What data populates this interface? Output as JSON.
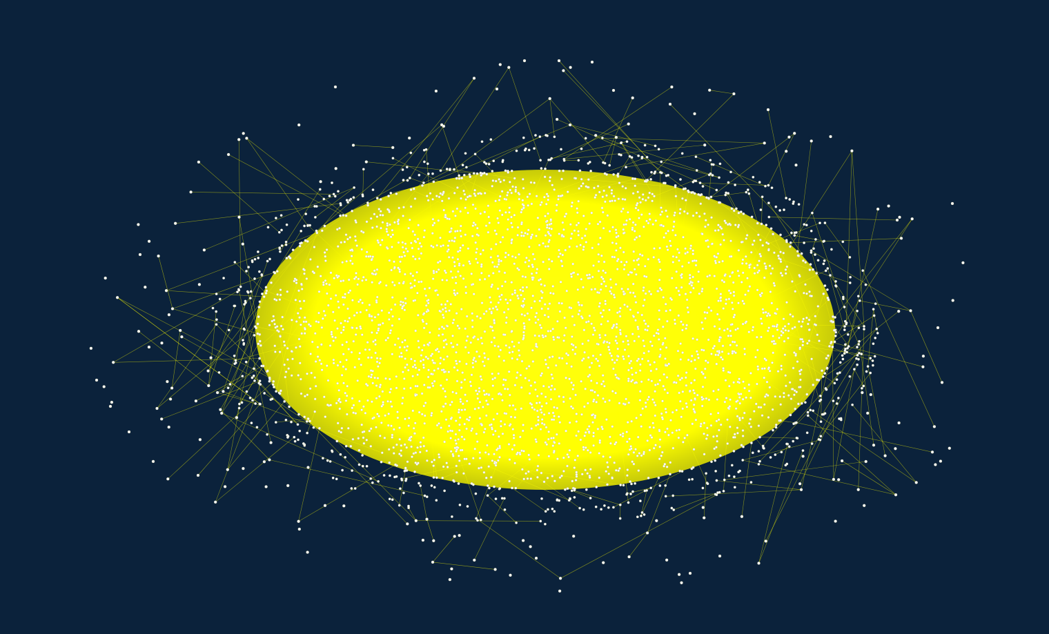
{
  "canvas": {
    "background": "#0b223b"
  },
  "graph": {
    "layout": "force-directed",
    "shape": "ellipse",
    "edge_color": "#ffff00",
    "node_color": "#ffffff",
    "node_outline_color": "#c8c8a0",
    "dense_core_color": "#ffff00",
    "labels_shown": false
  }
}
